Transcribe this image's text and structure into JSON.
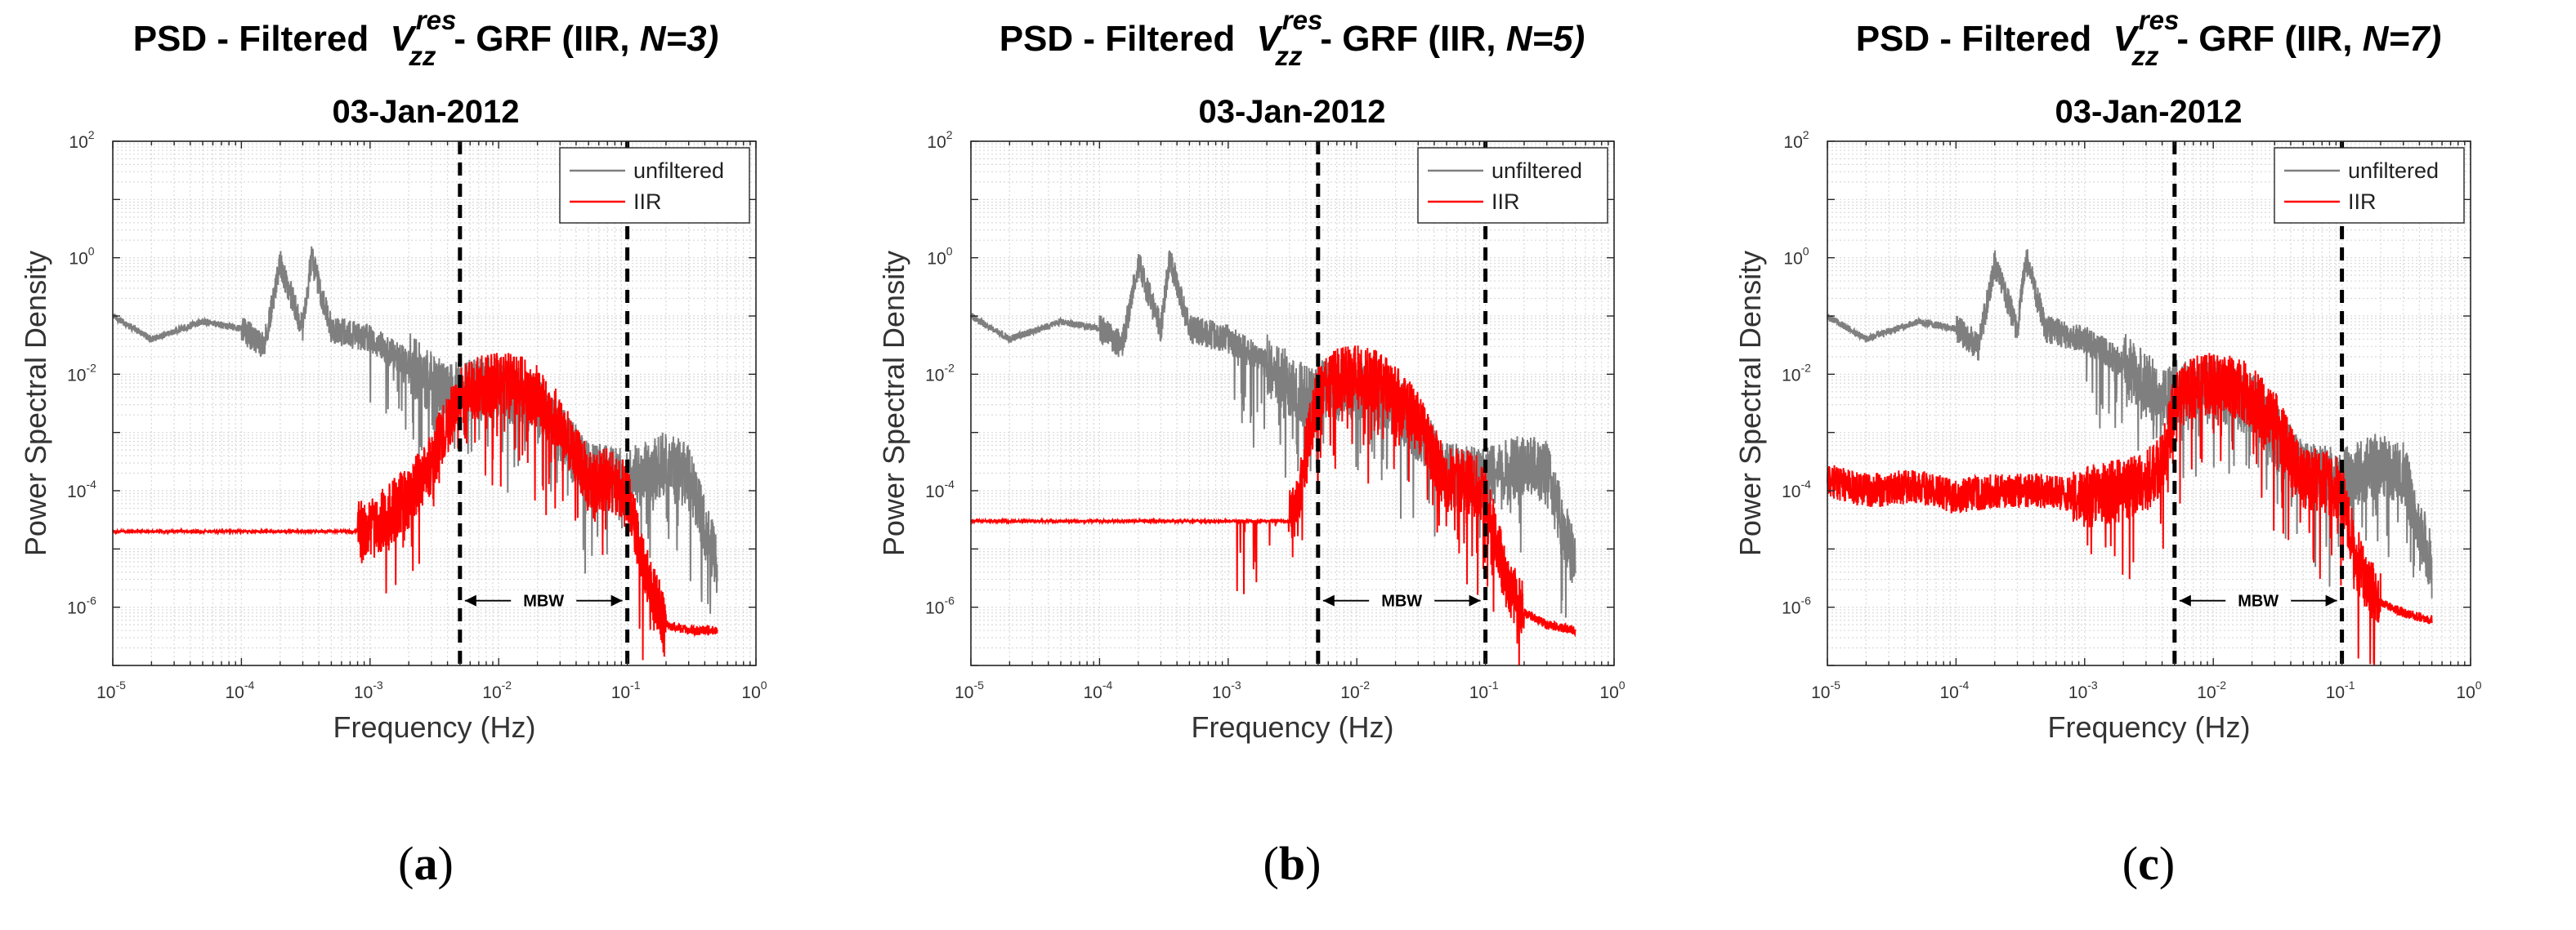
{
  "figure_labels": [
    {
      "open": "(",
      "letter": "a",
      "close": ")"
    },
    {
      "open": "(",
      "letter": "b",
      "close": ")"
    },
    {
      "open": "(",
      "letter": "c",
      "close": ")"
    }
  ],
  "colors": {
    "unfiltered": "#7f7f7f",
    "iir": "#ff0000",
    "grid": "#d9d9d9",
    "axis": "#262626",
    "cutoff": "#000000"
  },
  "chart_data": [
    {
      "type": "line",
      "title_prefix": "PSD - Filtered",
      "title_symbol": "V",
      "title_superscript": "res",
      "title_subscript": "zz",
      "title_suffix_a": "- GRF (IIR,",
      "title_suffix_n": "N=3)",
      "subtitle": "03-Jan-2012",
      "xlabel": "Frequency (Hz)",
      "ylabel": "Power Spectral Density",
      "xscale": "log",
      "yscale": "log",
      "xlim": [
        1e-05,
        1
      ],
      "ylim": [
        1e-07,
        100
      ],
      "x_tick_base": [
        "10",
        "10",
        "10",
        "10",
        "10",
        "10"
      ],
      "x_tick_exponents": [
        "-5",
        "-4",
        "-3",
        "-2",
        "-1",
        "0"
      ],
      "y_tick_base": [
        "10",
        "10",
        "10",
        "10",
        "10"
      ],
      "y_tick_exponents": [
        "-6",
        "-4",
        "-2",
        "0",
        "2"
      ],
      "grid": true,
      "legend_position": "top-right",
      "legend": [
        "unfiltered",
        "IIR"
      ],
      "cutoff_frequencies_hz": [
        0.005,
        0.1
      ],
      "annotation": "MBW",
      "filter_order": 3,
      "series": [
        {
          "name": "unfiltered",
          "x": [
            1e-05,
            2e-05,
            5e-05,
            0.0001,
            0.00015,
            0.0002,
            0.0003,
            0.00035,
            0.0005,
            0.001,
            0.002,
            0.004,
            0.005,
            0.01,
            0.02,
            0.05,
            0.1,
            0.2,
            0.3,
            0.5
          ],
          "y": [
            0.1,
            0.04,
            0.08,
            0.06,
            0.03,
            0.8,
            0.06,
            1.0,
            0.06,
            0.04,
            0.015,
            0.004,
            0.005,
            0.006,
            0.003,
            0.0002,
            0.00015,
            0.0003,
            0.0002,
            5e-06
          ]
        },
        {
          "name": "IIR",
          "x": [
            1e-05,
            0.0001,
            0.0008,
            0.001,
            0.002,
            0.003,
            0.004,
            0.005,
            0.007,
            0.01,
            0.015,
            0.02,
            0.03,
            0.04,
            0.05,
            0.07,
            0.1,
            0.12,
            0.15,
            0.2,
            0.3,
            0.5
          ],
          "y": [
            2e-05,
            2e-05,
            2e-05,
            2e-05,
            8e-05,
            0.0003,
            0.0015,
            0.004,
            0.006,
            0.007,
            0.006,
            0.004,
            0.0015,
            0.0004,
            0.00015,
            0.00015,
            0.0001,
            1.5e-05,
            2.5e-06,
            5e-07,
            4e-07,
            4e-07
          ]
        }
      ]
    },
    {
      "type": "line",
      "title_prefix": "PSD - Filtered",
      "title_symbol": "V",
      "title_superscript": "res",
      "title_subscript": "zz",
      "title_suffix_a": "- GRF (IIR,",
      "title_suffix_n": "N=5)",
      "subtitle": "03-Jan-2012",
      "xlabel": "Frequency (Hz)",
      "ylabel": "Power Spectral Density",
      "xscale": "log",
      "yscale": "log",
      "xlim": [
        1e-05,
        1
      ],
      "ylim": [
        1e-07,
        100
      ],
      "x_tick_base": [
        "10",
        "10",
        "10",
        "10",
        "10",
        "10"
      ],
      "x_tick_exponents": [
        "-5",
        "-4",
        "-3",
        "-2",
        "-1",
        "0"
      ],
      "y_tick_base": [
        "10",
        "10",
        "10",
        "10",
        "10"
      ],
      "y_tick_exponents": [
        "-6",
        "-4",
        "-2",
        "0",
        "2"
      ],
      "grid": true,
      "legend_position": "top-right",
      "legend": [
        "unfiltered",
        "IIR"
      ],
      "cutoff_frequencies_hz": [
        0.005,
        0.1
      ],
      "annotation": "MBW",
      "filter_order": 5,
      "series": [
        {
          "name": "unfiltered",
          "x": [
            1e-05,
            2e-05,
            5e-05,
            0.0001,
            0.00015,
            0.0002,
            0.0003,
            0.00035,
            0.0005,
            0.001,
            0.002,
            0.004,
            0.005,
            0.01,
            0.02,
            0.05,
            0.1,
            0.2,
            0.3,
            0.5
          ],
          "y": [
            0.1,
            0.04,
            0.08,
            0.06,
            0.03,
            0.8,
            0.06,
            1.0,
            0.06,
            0.04,
            0.015,
            0.004,
            0.005,
            0.006,
            0.003,
            0.0002,
            0.00015,
            0.0003,
            0.0002,
            5e-06
          ]
        },
        {
          "name": "IIR",
          "x": [
            1e-05,
            0.0001,
            0.001,
            0.002,
            0.003,
            0.0035,
            0.004,
            0.005,
            0.007,
            0.01,
            0.015,
            0.02,
            0.03,
            0.04,
            0.05,
            0.07,
            0.1,
            0.12,
            0.15,
            0.2,
            0.3,
            0.5
          ],
          "y": [
            3e-05,
            3e-05,
            3e-05,
            3e-05,
            3e-05,
            6e-05,
            0.0005,
            0.004,
            0.008,
            0.009,
            0.007,
            0.004,
            0.0015,
            0.0004,
            0.00015,
            0.00015,
            0.0001,
            1.5e-05,
            2.5e-06,
            8e-07,
            5e-07,
            4e-07
          ]
        }
      ]
    },
    {
      "type": "line",
      "title_prefix": "PSD - Filtered",
      "title_symbol": "V",
      "title_superscript": "res",
      "title_subscript": "zz",
      "title_suffix_a": "- GRF (IIR,",
      "title_suffix_n": "N=7)",
      "subtitle": "03-Jan-2012",
      "xlabel": "Frequency (Hz)",
      "ylabel": "Power Spectral Density",
      "xscale": "log",
      "yscale": "log",
      "xlim": [
        1e-05,
        1
      ],
      "ylim": [
        1e-07,
        100
      ],
      "x_tick_base": [
        "10",
        "10",
        "10",
        "10",
        "10",
        "10"
      ],
      "x_tick_exponents": [
        "-5",
        "-4",
        "-3",
        "-2",
        "-1",
        "0"
      ],
      "y_tick_base": [
        "10",
        "10",
        "10",
        "10",
        "10"
      ],
      "y_tick_exponents": [
        "-6",
        "-4",
        "-2",
        "0",
        "2"
      ],
      "grid": true,
      "legend_position": "top-right",
      "legend": [
        "unfiltered",
        "IIR"
      ],
      "cutoff_frequencies_hz": [
        0.005,
        0.1
      ],
      "annotation": "MBW",
      "filter_order": 7,
      "series": [
        {
          "name": "unfiltered",
          "x": [
            1e-05,
            2e-05,
            5e-05,
            0.0001,
            0.00015,
            0.0002,
            0.0003,
            0.00035,
            0.0005,
            0.001,
            0.002,
            0.004,
            0.005,
            0.01,
            0.02,
            0.05,
            0.1,
            0.2,
            0.3,
            0.5
          ],
          "y": [
            0.1,
            0.04,
            0.08,
            0.06,
            0.03,
            0.8,
            0.06,
            1.0,
            0.06,
            0.04,
            0.015,
            0.004,
            0.005,
            0.006,
            0.003,
            0.0002,
            0.00015,
            0.0003,
            0.0002,
            5e-06
          ]
        },
        {
          "name": "IIR",
          "x": [
            1e-05,
            2e-05,
            5e-05,
            0.0001,
            0.0002,
            0.0005,
            0.001,
            0.002,
            0.003,
            0.004,
            0.005,
            0.007,
            0.01,
            0.015,
            0.02,
            0.03,
            0.04,
            0.05,
            0.07,
            0.1,
            0.12,
            0.15,
            0.2,
            0.3,
            0.5
          ],
          "y": [
            0.00015,
            0.0001,
            0.00012,
            8e-05,
            0.0001,
            0.0001,
            8e-05,
            0.0001,
            0.00015,
            0.0003,
            0.003,
            0.006,
            0.007,
            0.006,
            0.004,
            0.0015,
            0.0004,
            0.00015,
            0.00015,
            0.0001,
            1.5e-05,
            3e-06,
            1.2e-06,
            8e-07,
            6e-07
          ]
        }
      ]
    }
  ]
}
